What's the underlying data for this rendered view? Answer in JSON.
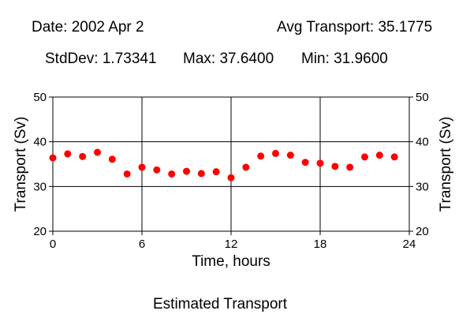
{
  "header": {
    "date": "Date: 2002 Apr 2",
    "avg": "Avg Transport: 35.1775",
    "stddev": "StdDev: 1.73341",
    "max": "Max: 37.6400",
    "min": "Min: 31.9600"
  },
  "footer": {
    "caption": "Estimated Transport"
  },
  "chart_data": {
    "type": "scatter",
    "xlabel": "Time, hours",
    "ylabel": "Transport (Sv)",
    "xlim": [
      0,
      24
    ],
    "ylim": [
      20,
      50
    ],
    "x_ticks": [
      "0",
      "6",
      "12",
      "18",
      "24"
    ],
    "y_ticks": [
      "20",
      "30",
      "40",
      "50"
    ],
    "grid": true,
    "marker_color": "#ff0000",
    "series": [
      {
        "x": [
          0,
          1,
          2,
          3,
          4,
          5,
          6,
          7,
          8,
          9,
          10,
          11,
          12,
          13,
          14,
          15,
          16,
          17,
          18,
          19,
          20,
          21,
          22,
          23
        ],
        "y": [
          36.4,
          37.3,
          36.7,
          37.64,
          36.1,
          32.8,
          34.3,
          33.7,
          32.8,
          33.4,
          32.9,
          33.3,
          31.96,
          34.3,
          36.8,
          37.4,
          37.0,
          35.4,
          35.2,
          34.5,
          34.3,
          36.6,
          37.0,
          36.6
        ]
      }
    ]
  }
}
